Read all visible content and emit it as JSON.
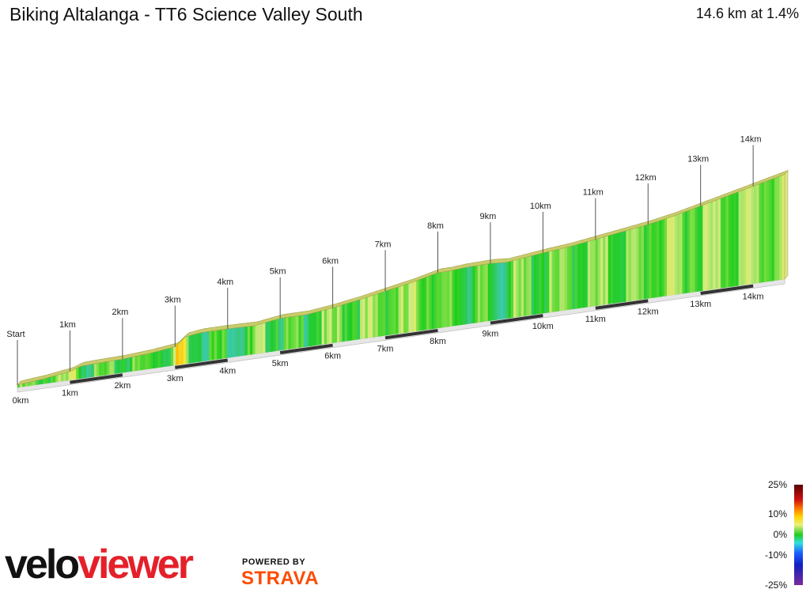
{
  "header": {
    "title": "Biking Altalanga - TT6 Science Valley South",
    "summary": "14.6 km at 1.4%"
  },
  "chart_data": {
    "type": "area",
    "title": "Biking Altalanga - TT6 Science Valley South",
    "total_distance_km": 14.6,
    "average_grade_percent": 1.4,
    "start_label": "Start",
    "markers": [
      "1km",
      "2km",
      "3km",
      "4km",
      "5km",
      "6km",
      "7km",
      "8km",
      "9km",
      "10km",
      "11km",
      "12km",
      "13km",
      "14km"
    ],
    "axis_labels": [
      "0km",
      "1km",
      "2km",
      "3km",
      "4km",
      "5km",
      "6km",
      "7km",
      "8km",
      "9km",
      "10km",
      "11km",
      "12km",
      "13km",
      "14km"
    ],
    "x_km": [
      0,
      0.5,
      1,
      1.2,
      1.5,
      2,
      2.5,
      3,
      3.2,
      3.5,
      4,
      4.5,
      5,
      5.5,
      6,
      6.5,
      7,
      7.5,
      8,
      8.2,
      8.5,
      9,
      9.3,
      9.5,
      10,
      10.5,
      11,
      11.5,
      12,
      12.5,
      13,
      13.5,
      14,
      14.6
    ],
    "elevation_rel_m": [
      0,
      2,
      5,
      8,
      8.5,
      9,
      10.5,
      13,
      20,
      21.5,
      21.5,
      21,
      24,
      24,
      26.5,
      30,
      34,
      38,
      43,
      43,
      44,
      44.5,
      43.5,
      44.5,
      47,
      49,
      52,
      55,
      58,
      62,
      67,
      72,
      77,
      83
    ],
    "grade_legend": [
      "25%",
      "10%",
      "0%",
      "-10%",
      "-25%"
    ]
  },
  "branding": {
    "logo_part1": "velo",
    "logo_part2": "viewer",
    "powered_by": "POWERED BY",
    "partner": "STRAVA"
  }
}
